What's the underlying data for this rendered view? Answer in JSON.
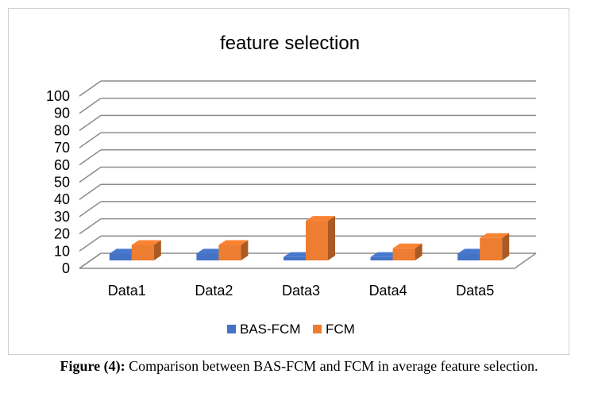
{
  "chart_data": {
    "type": "bar",
    "title": "feature selection",
    "categories": [
      "Data1",
      "Data2",
      "Data3",
      "Data4",
      "Data5"
    ],
    "series": [
      {
        "name": "BAS-FCM",
        "values": [
          4,
          4,
          2,
          2,
          4
        ],
        "color": "#4472C4"
      },
      {
        "name": "FCM",
        "values": [
          9,
          9,
          23,
          7,
          13
        ],
        "color": "#ED7D31"
      }
    ],
    "ylim": [
      0,
      100
    ],
    "yticks": [
      "0",
      "10",
      "20",
      "30",
      "40",
      "50",
      "60",
      "70",
      "80",
      "90",
      "100"
    ],
    "grid": true,
    "legend": "bottom",
    "style": "3d-clustered-column"
  },
  "caption": {
    "figure_label": "Figure (4):",
    "text": "Comparison between BAS-FCM and FCM in average feature selection."
  }
}
